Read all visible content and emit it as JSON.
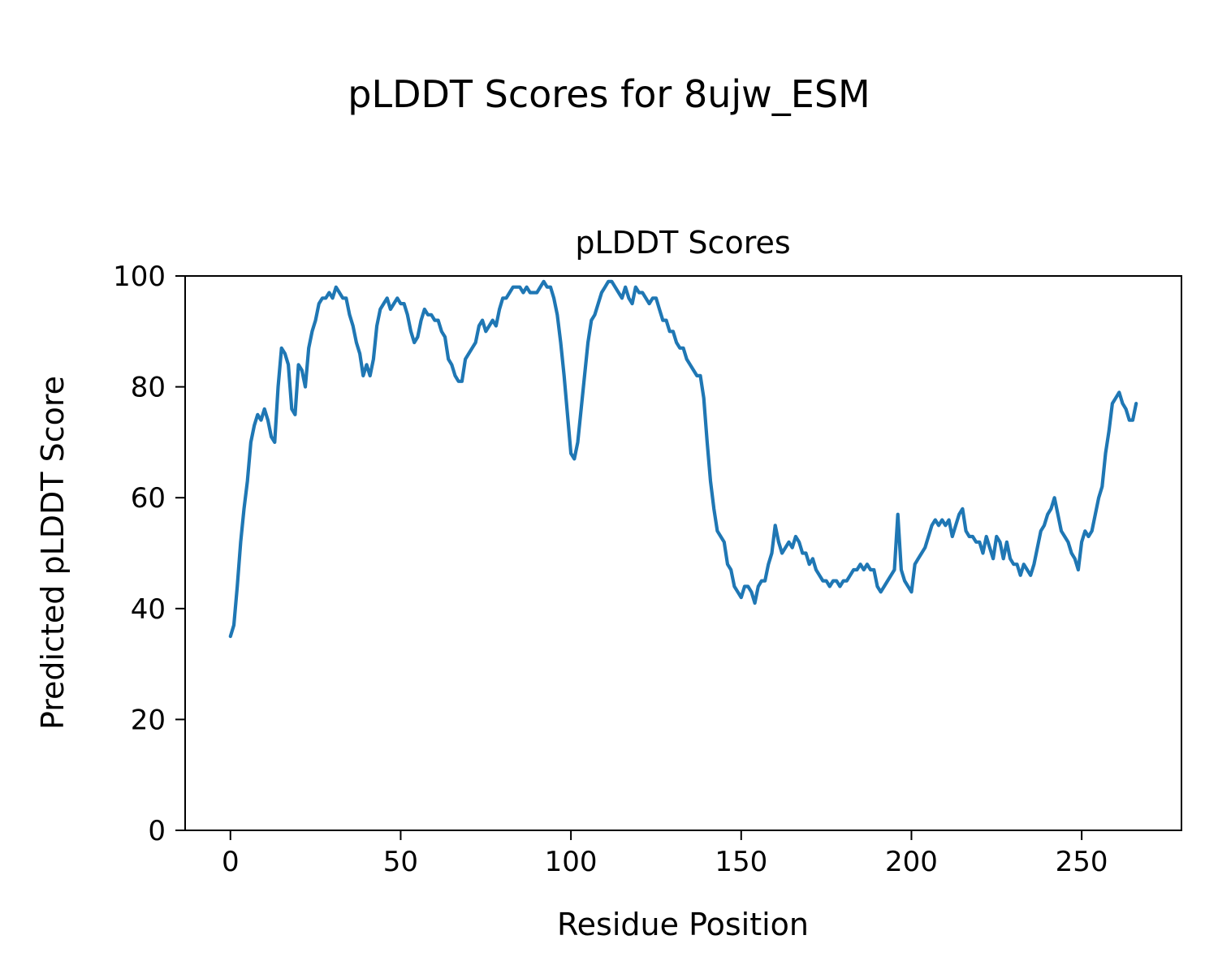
{
  "chart_data": {
    "type": "line",
    "suptitle": "pLDDT Scores for 8ujw_ESM",
    "title": "pLDDT Scores",
    "xlabel": "Residue Position",
    "ylabel": "Predicted pLDDT Score",
    "xticks": [
      0,
      50,
      100,
      150,
      200,
      250
    ],
    "yticks": [
      0,
      20,
      40,
      60,
      80,
      100
    ],
    "xlim": [
      -13.3,
      279.3
    ],
    "ylim": [
      0,
      100
    ],
    "x_start": 0,
    "x_step": 1,
    "grid": false,
    "legend": "none",
    "line_color": "#1f77b4",
    "line_width": 4.2,
    "background_color": "#ffffff",
    "series_name": "pLDDT",
    "values": [
      35,
      37,
      44,
      52,
      58,
      63,
      70,
      73,
      75,
      74,
      76,
      74,
      71,
      70,
      80,
      87,
      86,
      84,
      76,
      75,
      84,
      83,
      80,
      87,
      90,
      92,
      95,
      96,
      96,
      97,
      96,
      98,
      97,
      96,
      96,
      93,
      91,
      88,
      86,
      82,
      84,
      82,
      85,
      91,
      94,
      95,
      96,
      94,
      95,
      96,
      95,
      95,
      93,
      90,
      88,
      89,
      92,
      94,
      93,
      93,
      92,
      92,
      90,
      89,
      85,
      84,
      82,
      81,
      81,
      85,
      86,
      87,
      88,
      91,
      92,
      90,
      91,
      92,
      91,
      94,
      96,
      96,
      97,
      98,
      98,
      98,
      97,
      98,
      97,
      97,
      97,
      98,
      99,
      98,
      98,
      96,
      93,
      88,
      82,
      75,
      68,
      67,
      70,
      76,
      82,
      88,
      92,
      93,
      95,
      97,
      98,
      99,
      99,
      98,
      97,
      96,
      98,
      96,
      95,
      98,
      97,
      97,
      96,
      95,
      96,
      96,
      94,
      92,
      92,
      90,
      90,
      88,
      87,
      87,
      85,
      84,
      83,
      82,
      82,
      78,
      70,
      63,
      58,
      54,
      53,
      52,
      48,
      47,
      44,
      43,
      42,
      44,
      44,
      43,
      41,
      44,
      45,
      45,
      48,
      50,
      55,
      52,
      50,
      51,
      52,
      51,
      53,
      52,
      50,
      50,
      48,
      49,
      47,
      46,
      45,
      45,
      44,
      45,
      45,
      44,
      45,
      45,
      46,
      47,
      47,
      48,
      47,
      48,
      47,
      47,
      44,
      43,
      44,
      45,
      46,
      47,
      57,
      47,
      45,
      44,
      43,
      48,
      49,
      50,
      51,
      53,
      55,
      56,
      55,
      56,
      55,
      56,
      53,
      55,
      57,
      58,
      54,
      53,
      53,
      52,
      52,
      50,
      53,
      51,
      49,
      53,
      52,
      49,
      52,
      49,
      48,
      48,
      46,
      48,
      47,
      46,
      48,
      51,
      54,
      55,
      57,
      58,
      60,
      57,
      54,
      53,
      52,
      50,
      49,
      47,
      52,
      54,
      53,
      54,
      57,
      60,
      62,
      68,
      72,
      77,
      78,
      79,
      77,
      76,
      74,
      74,
      77
    ]
  }
}
